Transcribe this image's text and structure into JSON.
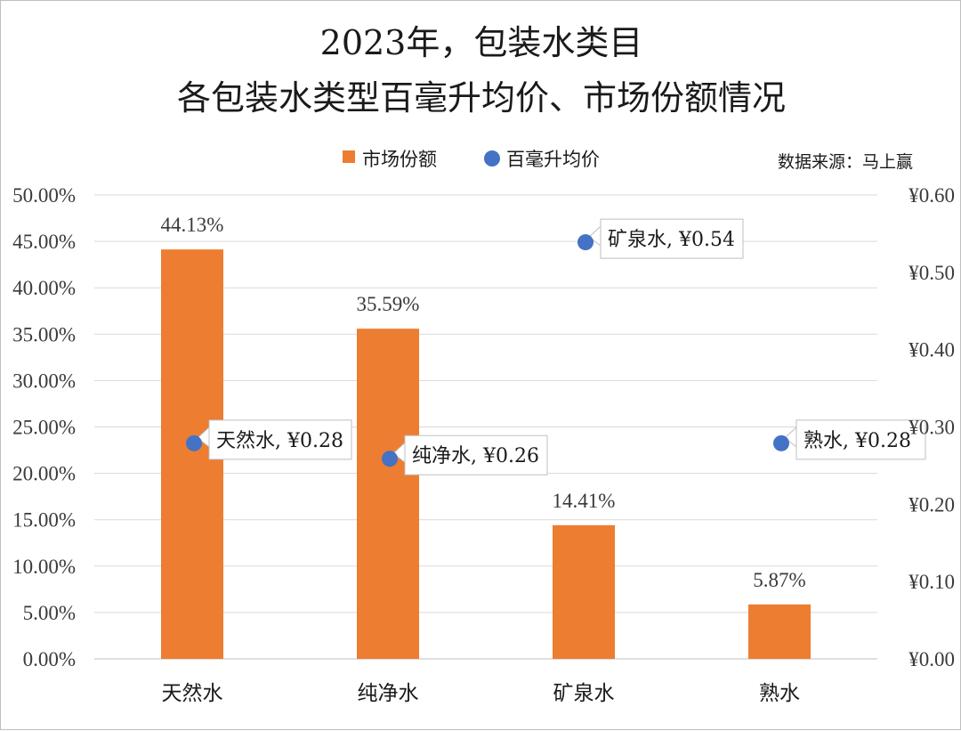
{
  "chart_data": {
    "type": "bar",
    "title": "2023年，包装水类目",
    "subtitle": "各包装水类型百毫升均价、市场份额情况",
    "source": "数据来源：马上赢",
    "categories": [
      "天然水",
      "纯净水",
      "矿泉水",
      "熟水"
    ],
    "series": [
      {
        "name": "市场份额",
        "kind": "bar",
        "axis": "left",
        "color": "#ed7d31",
        "values": [
          44.13,
          35.59,
          14.41,
          5.87
        ],
        "labels": [
          "44.13%",
          "35.59%",
          "14.41%",
          "5.87%"
        ]
      },
      {
        "name": "百毫升均价",
        "kind": "scatter",
        "axis": "right",
        "color": "#4472c4",
        "values": [
          0.28,
          0.26,
          0.54,
          0.28
        ],
        "labels": [
          "天然水, ¥0.28",
          "纯净水, ¥0.26",
          "矿泉水, ¥0.54",
          "熟水, ¥0.28"
        ]
      }
    ],
    "y_left": {
      "range": [
        0,
        50
      ],
      "ticks": [
        "0.00%",
        "5.00%",
        "10.00%",
        "15.00%",
        "20.00%",
        "25.00%",
        "30.00%",
        "35.00%",
        "40.00%",
        "45.00%",
        "50.00%"
      ]
    },
    "y_right": {
      "range": [
        0,
        0.6
      ],
      "ticks": [
        "¥0.00",
        "¥0.10",
        "¥0.20",
        "¥0.30",
        "¥0.40",
        "¥0.50",
        "¥0.60"
      ]
    },
    "grid": true,
    "legend": "top-center"
  }
}
